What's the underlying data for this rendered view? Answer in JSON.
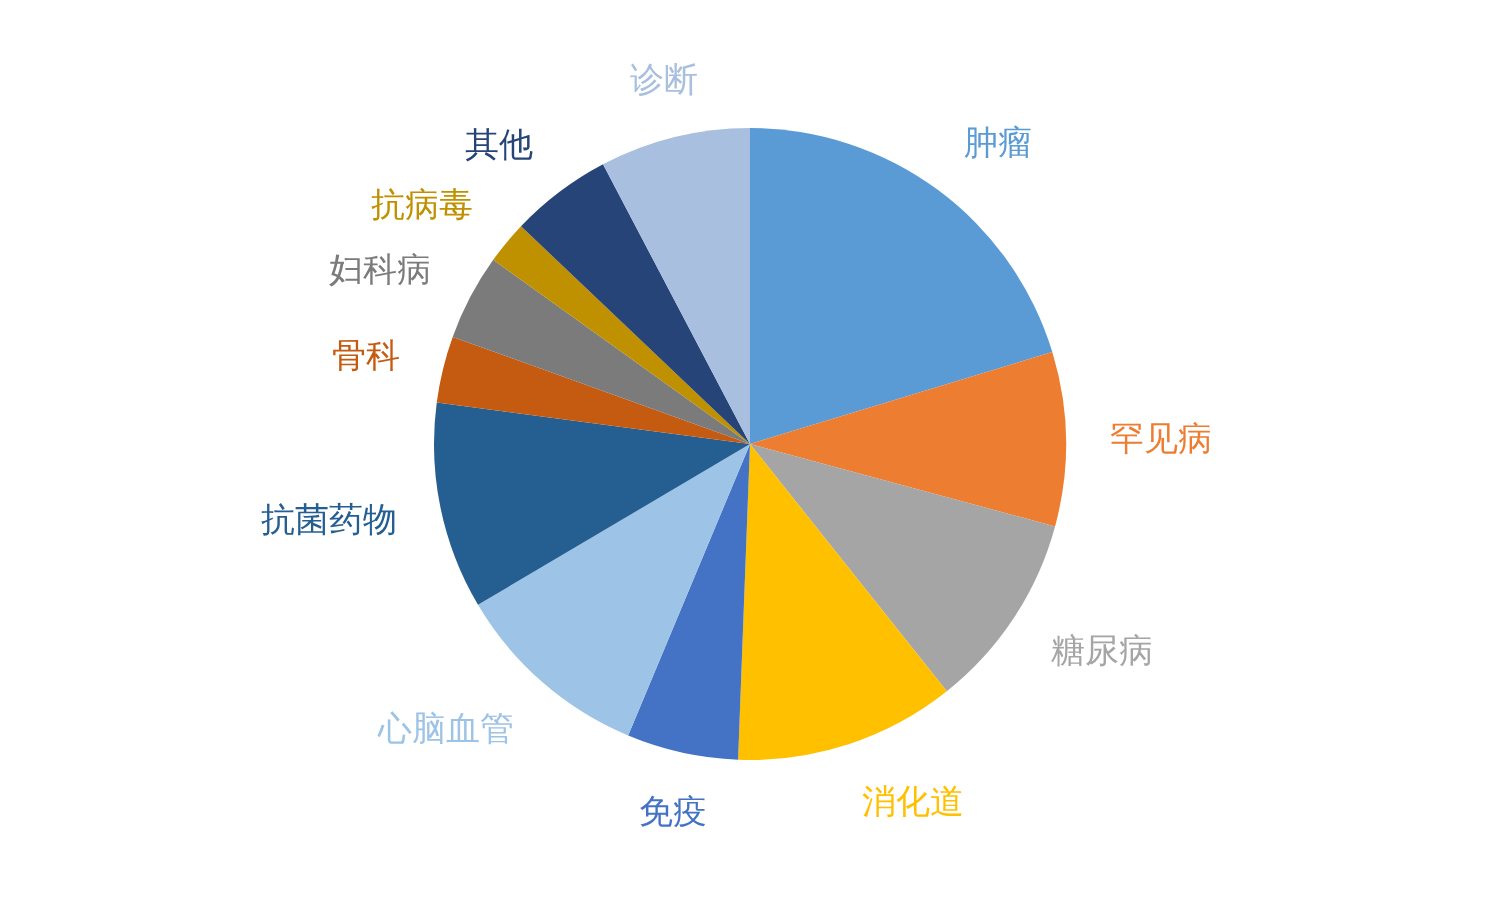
{
  "chart_data": {
    "type": "pie",
    "categories": [
      "肿瘤",
      "罕见病",
      "糖尿病",
      "消化道",
      "免疫",
      "心脑血管",
      "抗菌药物",
      "骨科",
      "妇科病",
      "抗病毒",
      "其他",
      "诊断"
    ],
    "values": [
      20.3,
      8.9,
      10.1,
      11.3,
      5.7,
      10.2,
      10.6,
      3.4,
      4.4,
      2.2,
      5.2,
      7.7
    ],
    "colors": [
      "#5b9bd5",
      "#ed7d31",
      "#a5a5a5",
      "#ffc000",
      "#4472c4",
      "#9dc3e6",
      "#255e91",
      "#c55a11",
      "#7b7b7b",
      "#bf9000",
      "#264478",
      "#a9bfdf"
    ]
  }
}
